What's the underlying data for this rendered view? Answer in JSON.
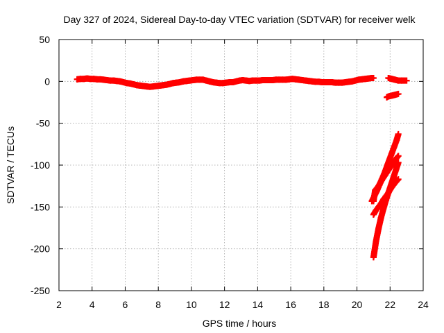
{
  "chart_data": {
    "type": "scatter",
    "title": "Day 327 of 2024, Sidereal Day-to-day VTEC variation (SDTVAR) for receiver welk",
    "xlabel": "GPS time / hours",
    "ylabel": "SDTVAR / TECUs",
    "xlim": [
      2,
      24
    ],
    "ylim": [
      -250,
      50
    ],
    "xticks": [
      2,
      4,
      6,
      8,
      10,
      12,
      14,
      16,
      18,
      20,
      22,
      24
    ],
    "yticks": [
      50,
      0,
      -50,
      -100,
      -150,
      -200,
      -250
    ],
    "grid": true,
    "legend": "none",
    "marker": "plus",
    "color": "#ff0000",
    "series": [
      {
        "name": "main trace",
        "x": [
          3.1,
          3.3,
          3.5,
          3.7,
          3.9,
          4.1,
          4.3,
          4.5,
          4.7,
          4.9,
          5.1,
          5.3,
          5.5,
          5.7,
          5.9,
          6.1,
          6.3,
          6.5,
          6.7,
          6.9,
          7.1,
          7.3,
          7.5,
          7.7,
          7.9,
          8.1,
          8.3,
          8.5,
          8.7,
          8.9,
          9.1,
          9.3,
          9.5,
          9.7,
          9.9,
          10.1,
          10.3,
          10.5,
          10.7,
          10.9,
          11.1,
          11.3,
          11.5,
          11.7,
          11.9,
          12.1,
          12.3,
          12.5,
          12.9,
          13.1,
          13.3,
          13.5,
          13.7,
          13.9,
          14.1,
          14.3,
          14.5,
          14.9,
          15.1,
          15.3,
          15.5,
          15.7,
          15.9,
          16.1,
          16.3,
          16.5,
          16.7,
          16.9,
          17.1,
          17.3,
          17.5,
          17.7,
          17.9,
          18.1,
          18.3,
          18.5,
          18.7,
          18.9,
          19.1,
          19.3,
          19.5,
          19.7,
          19.9,
          20.1,
          20.3,
          20.5,
          20.7,
          20.9,
          21.0
        ],
        "y": [
          2.5,
          3,
          3,
          3.5,
          3,
          3,
          2.5,
          2.5,
          2,
          1.5,
          1,
          1,
          0.5,
          0,
          -1,
          -2,
          -2.5,
          -3.5,
          -4.5,
          -5,
          -5.5,
          -6,
          -6.5,
          -6,
          -5.5,
          -5,
          -4.5,
          -4,
          -3,
          -2,
          -1.5,
          -1,
          0,
          0.5,
          1,
          1.5,
          2,
          2,
          2,
          1,
          0,
          -1,
          -1.5,
          -2,
          -2,
          -1.5,
          -1,
          -1,
          1,
          1.5,
          1,
          0.5,
          1,
          1,
          1,
          1.5,
          1.5,
          1.5,
          2,
          2,
          2,
          2,
          2.5,
          3,
          2.5,
          2,
          1.5,
          1,
          0.5,
          0,
          -0.5,
          -0.5,
          -1,
          -1,
          -1,
          -1,
          -1.5,
          -1.5,
          -1.5,
          -1,
          -0.5,
          0,
          1,
          2,
          2.5,
          3,
          3.5,
          4,
          4
        ]
      },
      {
        "name": "late segment A",
        "x": [
          21.9,
          22.0,
          22.1,
          22.2,
          22.3,
          22.4,
          22.5,
          22.7,
          23.0
        ],
        "y": [
          4,
          3.5,
          3,
          2.5,
          2,
          1.5,
          1,
          1,
          1
        ]
      },
      {
        "name": "late segment B",
        "x": [
          21.8,
          21.9,
          22.0,
          22.1,
          22.2,
          22.3,
          22.4,
          22.5
        ],
        "y": [
          -19,
          -18,
          -17.5,
          -17,
          -16.5,
          -16,
          -15.5,
          -15
        ]
      },
      {
        "name": "diagonal streak 1",
        "x": [
          20.9,
          21.05,
          21.2,
          21.35,
          21.5,
          21.65,
          21.8,
          21.95,
          22.1,
          22.25,
          22.4,
          22.5
        ],
        "y": [
          -143,
          -137,
          -131,
          -124,
          -117,
          -110,
          -102,
          -94,
          -86,
          -78,
          -70,
          -63
        ]
      },
      {
        "name": "diagonal streak 2",
        "x": [
          21.0,
          21.1,
          21.3,
          21.5,
          21.7,
          21.9,
          22.1,
          22.3,
          22.5
        ],
        "y": [
          -143,
          -130,
          -125,
          -118,
          -112,
          -106,
          -100,
          -94,
          -89
        ]
      },
      {
        "name": "diagonal streak 3",
        "x": [
          21.0,
          21.15,
          21.3,
          21.45,
          21.6,
          21.75,
          21.9,
          22.05,
          22.2,
          22.35,
          22.5
        ],
        "y": [
          -159,
          -154,
          -150,
          -146,
          -141,
          -137,
          -133,
          -128,
          -124,
          -120,
          -117
        ]
      },
      {
        "name": "diagonal streak 4",
        "x": [
          21.0,
          21.15,
          21.3,
          21.45,
          21.6,
          21.75,
          21.9,
          22.05,
          22.2,
          22.35,
          22.5
        ],
        "y": [
          -210,
          -191,
          -176,
          -163,
          -152,
          -142,
          -133,
          -124,
          -115,
          -106,
          -97
        ]
      }
    ]
  }
}
